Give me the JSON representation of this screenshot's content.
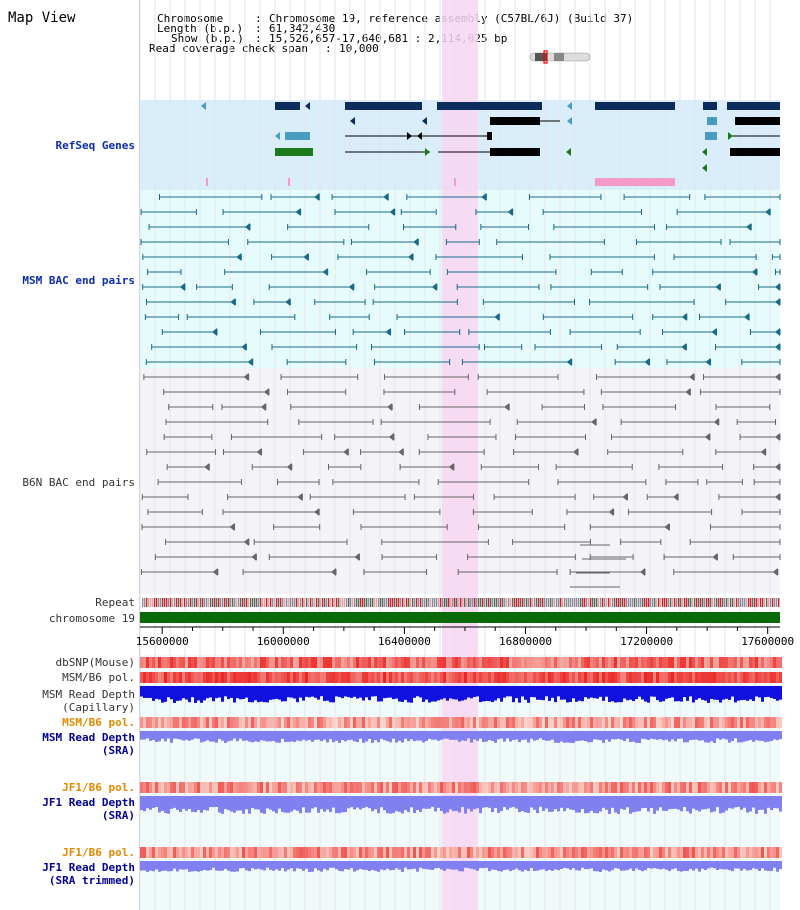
{
  "window": {
    "title": "Map View"
  },
  "header": {
    "chromosome_label": "Chromosome",
    "chromosome_value": "Chromosome 19, reference assembly (C57BL/6J) (Build 37)",
    "length_label": "Length (b.p.)",
    "length_value": "61,342,430",
    "show_label": "Show (b.p.)",
    "show_value": "15,526,657-17,640,681 : 2,114,025 bp",
    "coverage_label": "Read coverage check span",
    "coverage_value": "10,000"
  },
  "tracks": {
    "refseq": "RefSeq Genes",
    "msm_bac": "MSM BAC end pairs",
    "b6n_bac": "B6N BAC end pairs",
    "repeat": "Repeat",
    "chromosome": "chromosome 19",
    "dbsnp": "dbSNP(Mouse)",
    "msm_b6_pol_1": "MSM/B6 pol.",
    "msm_read_depth_cap_1": "MSM Read Depth",
    "msm_read_depth_cap_2": "(Capillary)",
    "msm_b6_pol_2": "MSM/B6 pol.",
    "msm_read_depth_sra_1": "MSM Read Depth",
    "msm_read_depth_sra_2": "(SRA)",
    "jf1_b6_pol_1": "JF1/B6 pol.",
    "jf1_read_depth_sra_1": "JF1 Read Depth",
    "jf1_read_depth_sra_2": "(SRA)",
    "jf1_b6_pol_2": "JF1/B6 pol.",
    "jf1_read_depth_trim_1": "JF1 Read Depth",
    "jf1_read_depth_trim_2": "(SRA trimmed)"
  },
  "axis": {
    "ticks": [
      "15600000",
      "16000000",
      "16400000",
      "16800000",
      "17200000",
      "17600000"
    ],
    "tick_positions_bp": [
      15600000,
      16000000,
      16400000,
      16800000,
      17200000,
      17600000
    ]
  },
  "colors": {
    "refseq_bg": "#d9eefa",
    "msm_bg": "#e6fbfb",
    "b6n_bg": "#f4f4f8",
    "highlight": "#f7d6f2",
    "gene_navy": "#0d2c5e",
    "gene_teal": "#4a9bc0",
    "gene_green": "#1c7a1c",
    "gene_black": "#000000",
    "bac_teal": "#1a6a86",
    "bac_gray": "#666666",
    "chrom_green": "#0a6a0a",
    "depth_blue": "#1010e0",
    "depth_lavender": "#8080f0"
  },
  "icons": {
    "chromosome_ideogram": "chromosome-ideogram-icon",
    "arrow_heads": "arrow-head-icon"
  }
}
